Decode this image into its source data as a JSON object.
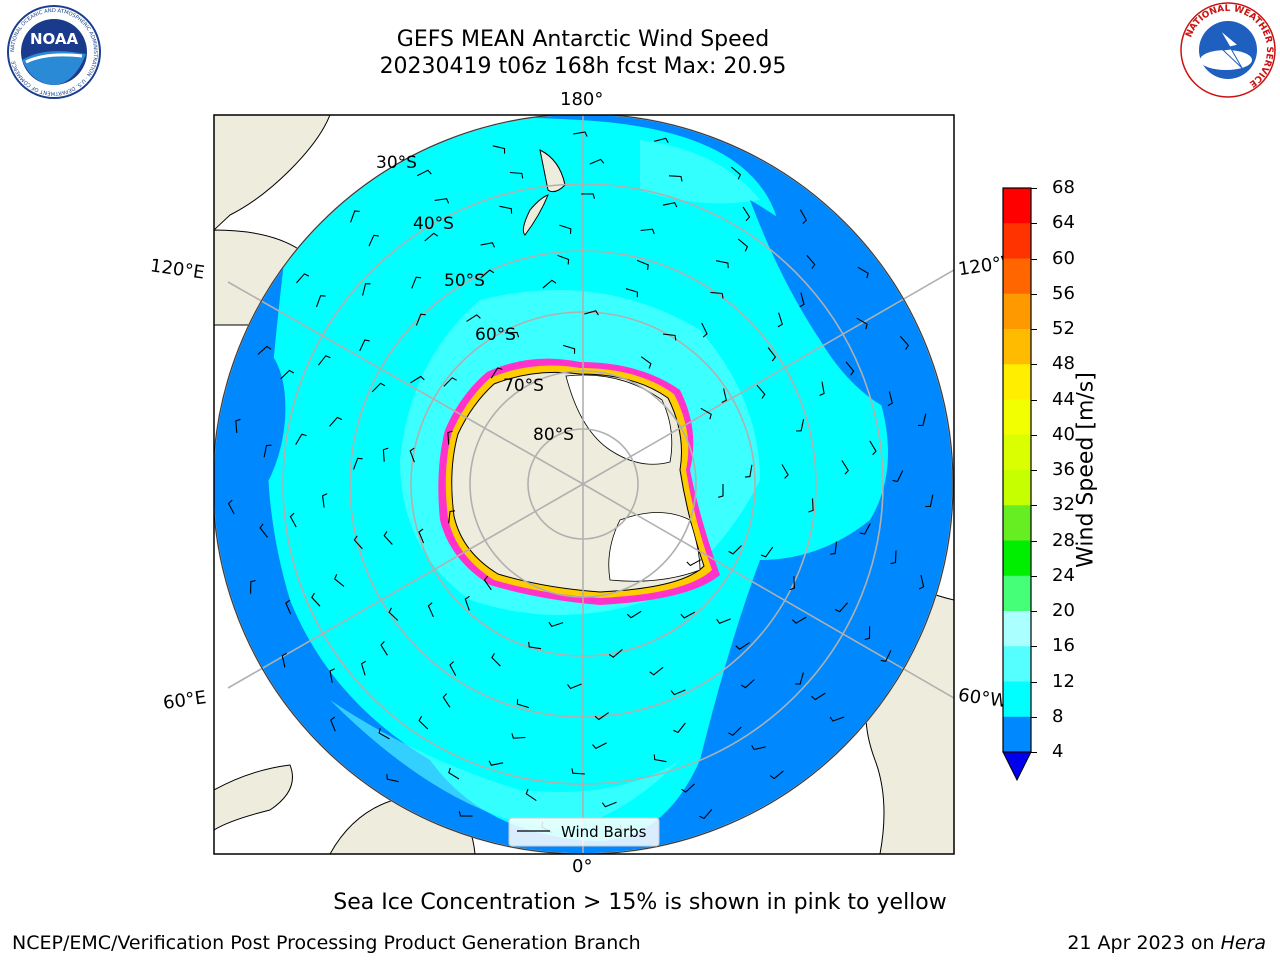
{
  "header": {
    "title_line1": "GEFS MEAN Antarctic Wind Speed",
    "title_line2": "20230419 t06z 168h fcst   Max: 20.95"
  },
  "logos": {
    "left": "NOAA",
    "left_ring_text": "NATIONAL OCEANIC AND ATMOSPHERIC ADMINISTRATION · U.S. DEPARTMENT OF COMMERCE",
    "right_ring_text": "NATIONAL WEATHER SERVICE"
  },
  "map": {
    "projection": "south-polar-stereographic",
    "longitude_labels": {
      "top": "180°",
      "bottom": "0°",
      "upper_left": "120°E",
      "lower_left": "60°E",
      "upper_right": "120°W",
      "lower_right": "60°W"
    },
    "latitude_labels": [
      "30°S",
      "40°S",
      "50°S",
      "60°S",
      "70°S",
      "80°S"
    ],
    "legend_label": "Wind Barbs",
    "colors": {
      "land": "#eeecdc",
      "ice_shelf": "#ffffff",
      "sea_ice_edge": [
        "#ff33cc",
        "#ffcc00"
      ]
    }
  },
  "colorbar": {
    "label": "Wind Speed [m/s]",
    "ticks": [
      "68",
      "64",
      "60",
      "56",
      "52",
      "48",
      "44",
      "40",
      "36",
      "32",
      "28",
      "24",
      "20",
      "16",
      "12",
      "8",
      "4"
    ],
    "colors": [
      "#ff0000",
      "#ff3300",
      "#ff6600",
      "#ff9900",
      "#ffbb00",
      "#ffee00",
      "#f2ff00",
      "#d9ff00",
      "#c6ff00",
      "#66ee22",
      "#00ee00",
      "#44ff77",
      "#aaffff",
      "#55ffff",
      "#00ffff",
      "#0088ff",
      "#0000ff"
    ],
    "extend_color": "#0000ee"
  },
  "caption": "Sea Ice Concentration > 15% is shown in pink to yellow",
  "footer": {
    "left": "NCEP/EMC/Verification Post Processing Product Generation Branch",
    "right_prefix": "21 Apr 2023 on ",
    "right_host": "Hera"
  }
}
